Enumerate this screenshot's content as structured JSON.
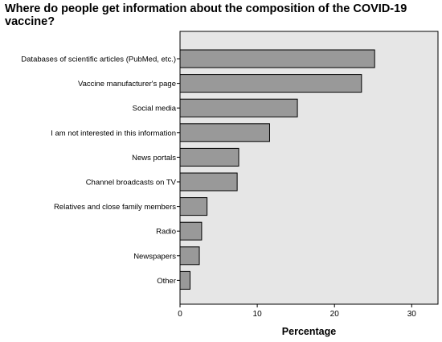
{
  "chart_data": {
    "type": "bar",
    "orientation": "horizontal",
    "title": "Where do people get information about the composition of the COVID-19 vaccine?",
    "xlabel": "Percentage",
    "ylabel": "",
    "categories": [
      "Databases of scientific articles (PubMed, etc.)",
      "Vaccine manufacturer's page",
      "Social media",
      "I am not interested in this information",
      "News portals",
      "Channel broadcasts on TV",
      "Relatives and close family members",
      "Radio",
      "Newspapers",
      "Other"
    ],
    "values": [
      25.2,
      23.5,
      15.2,
      11.6,
      7.6,
      7.4,
      3.5,
      2.8,
      2.5,
      1.3
    ],
    "xlim": [
      0,
      33.4
    ],
    "xticks": [
      0,
      10,
      20,
      30
    ],
    "grid": false,
    "colors": {
      "plot_background": "#e6e6e6",
      "bar_fill": "#999999",
      "bar_stroke": "#000000"
    }
  }
}
